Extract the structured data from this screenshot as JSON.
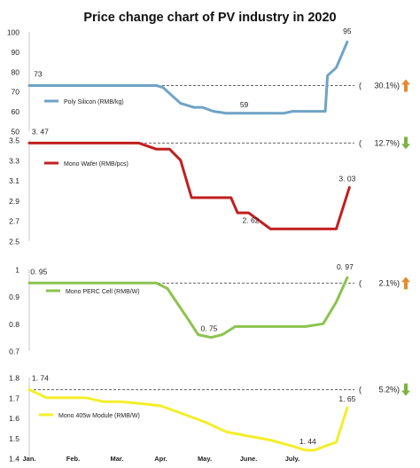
{
  "title": "Price change chart of PV industry in 2020",
  "x_labels": [
    "Jan.",
    "Feb.",
    "Mar.",
    "Apr.",
    "May.",
    "June.",
    "July."
  ],
  "chart_data": [
    {
      "type": "line",
      "name": "Poly Silicon (RMB/kg)",
      "color": "#6fa3c6",
      "ylim": [
        50,
        100
      ],
      "yticks": [
        "100",
        "90",
        "80",
        "70",
        "60",
        "50"
      ],
      "ytick_values": [
        100,
        90,
        80,
        70,
        60,
        50
      ],
      "reference": 73,
      "x": [
        0,
        0.3,
        0.5,
        1,
        1.5,
        2,
        2.5,
        2.9,
        3.05,
        3.25,
        3.45,
        3.75,
        3.95,
        4.2,
        4.5,
        4.8,
        5.1,
        5.5,
        5.8,
        6.0,
        6.2,
        6.5,
        6.75,
        6.8,
        7.0,
        7.25
      ],
      "y": [
        73,
        73,
        73,
        73,
        73,
        73,
        73,
        73,
        72,
        68,
        64,
        62,
        62,
        60,
        59,
        59,
        59,
        59,
        59,
        60,
        60,
        60,
        60,
        78,
        82,
        95
      ],
      "point_labels": [
        {
          "x": 0.2,
          "y": 73,
          "text": "73"
        },
        {
          "x": 4.9,
          "y": 59,
          "text": "59"
        },
        {
          "x": 7.25,
          "y": 95,
          "text": "95"
        }
      ],
      "change": {
        "text": "30.1%)",
        "open": "(",
        "direction": "up"
      }
    },
    {
      "type": "line",
      "name": "Mono Wafer (RMB/pcs)",
      "color": "#c11f1f",
      "ylim": [
        2.5,
        3.5
      ],
      "yticks": [
        "3.5",
        "3.3",
        "3.1",
        "2.9",
        "2.7",
        "2.5"
      ],
      "ytick_values": [
        3.5,
        3.3,
        3.1,
        2.9,
        2.7,
        2.5
      ],
      "reference": 3.47,
      "x": [
        0,
        0.5,
        1,
        1.5,
        2,
        2.5,
        2.9,
        3.2,
        3.45,
        3.7,
        3.95,
        4.3,
        4.6,
        4.75,
        5.0,
        5.5,
        6.0,
        6.5,
        6.8,
        7.0,
        7.3
      ],
      "y": [
        3.47,
        3.47,
        3.47,
        3.47,
        3.47,
        3.47,
        3.41,
        3.41,
        3.3,
        2.93,
        2.93,
        2.93,
        2.93,
        2.78,
        2.78,
        2.62,
        2.62,
        2.62,
        2.62,
        2.62,
        3.03
      ],
      "point_labels": [
        {
          "x": 0.25,
          "y": 3.47,
          "text": "3. 47"
        },
        {
          "x": 5.05,
          "y": 2.62,
          "text": "2. 62"
        },
        {
          "x": 7.25,
          "y": 3.03,
          "text": "3. 03"
        }
      ],
      "change": {
        "text": "12.7%)",
        "open": "(",
        "direction": "down"
      }
    },
    {
      "type": "line",
      "name": "Mono PERC Cell (RMB/W)",
      "color": "#8cc34f",
      "ylim": [
        0.7,
        1.0
      ],
      "yticks": [
        "1",
        "0.9",
        "0.8",
        "0.7"
      ],
      "ytick_values": [
        1.0,
        0.9,
        0.8,
        0.7
      ],
      "reference": 0.95,
      "x": [
        0,
        0.5,
        1,
        1.5,
        2,
        2.5,
        2.9,
        3.15,
        3.4,
        3.65,
        3.85,
        4.15,
        4.4,
        4.7,
        5.0,
        5.5,
        6.0,
        6.3,
        6.7,
        7.0,
        7.25
      ],
      "y": [
        0.95,
        0.95,
        0.95,
        0.95,
        0.95,
        0.95,
        0.95,
        0.93,
        0.87,
        0.81,
        0.76,
        0.75,
        0.76,
        0.79,
        0.79,
        0.79,
        0.79,
        0.79,
        0.8,
        0.88,
        0.97
      ],
      "point_labels": [
        {
          "x": 0.22,
          "y": 0.95,
          "text": "0. 95"
        },
        {
          "x": 4.1,
          "y": 0.75,
          "text": "0. 75"
        },
        {
          "x": 7.2,
          "y": 0.97,
          "text": "0. 97"
        }
      ],
      "change": {
        "text": "2.1%)",
        "open": "(",
        "direction": "up"
      }
    },
    {
      "type": "line",
      "name": "Mono 405w Module (RMB/W)",
      "color": "#f4ee2a",
      "ylim": [
        1.4,
        1.8
      ],
      "yticks": [
        "1.8",
        "1.7",
        "1.6",
        "1.5",
        "1.4"
      ],
      "ytick_values": [
        1.8,
        1.7,
        1.6,
        1.5,
        1.4
      ],
      "reference": 1.74,
      "x": [
        0,
        0.4,
        0.8,
        1.3,
        1.7,
        2.1,
        2.6,
        3.0,
        3.5,
        4.0,
        4.5,
        5.0,
        5.5,
        6.0,
        6.3,
        6.5,
        6.75,
        7.0,
        7.25
      ],
      "y": [
        1.74,
        1.7,
        1.7,
        1.7,
        1.68,
        1.68,
        1.67,
        1.66,
        1.62,
        1.58,
        1.53,
        1.51,
        1.49,
        1.46,
        1.44,
        1.44,
        1.46,
        1.48,
        1.65
      ],
      "point_labels": [
        {
          "x": 0.25,
          "y": 1.74,
          "text": "1. 74"
        },
        {
          "x": 6.35,
          "y": 1.44,
          "text": "1. 44"
        },
        {
          "x": 7.25,
          "y": 1.65,
          "text": "1. 65"
        }
      ],
      "change": {
        "text": "5.2%)",
        "open": "(",
        "direction": "down"
      }
    }
  ]
}
